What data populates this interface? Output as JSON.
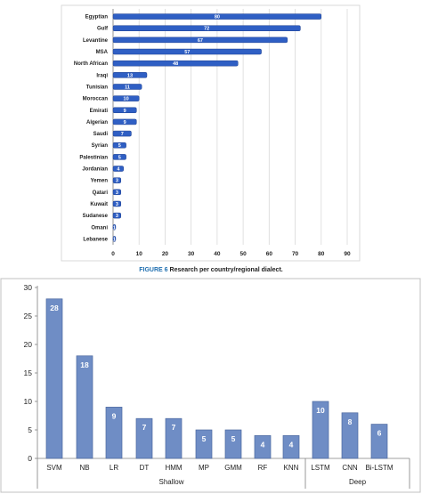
{
  "caption": {
    "figure_label": "FIGURE 6",
    "text": " Research per country/regional dialect."
  },
  "colors": {
    "bar_top": "#2f5fc4",
    "bar_top_edge": "#1d3f8f",
    "bar_bottom": "#6f8dc5",
    "bar_bottom_edge": "#4a679e",
    "grid": "#d9d9d9",
    "axis": "#808080"
  },
  "chart_data": [
    {
      "type": "bar",
      "orientation": "horizontal",
      "title": "",
      "xlabel": "",
      "ylabel": "",
      "xlim": [
        0,
        90
      ],
      "xticks": [
        0,
        10,
        20,
        30,
        40,
        50,
        60,
        70,
        80,
        90
      ],
      "grid": true,
      "categories": [
        "Egyptian",
        "Gulf",
        "Levantine",
        "MSA",
        "North African",
        "Iraqi",
        "Tunisian",
        "Moroccan",
        "Emirati",
        "Algerian",
        "Saudi",
        "Syrian",
        "Palestinian",
        "Jordanian",
        "Yemen",
        "Qatari",
        "Kuwait",
        "Sudanese",
        "Omani",
        "Lebanese"
      ],
      "values": [
        80,
        72,
        67,
        57,
        48,
        13,
        11,
        10,
        9,
        9,
        7,
        5,
        5,
        4,
        3,
        3,
        3,
        3,
        1,
        1
      ],
      "labels": [
        "80",
        "72",
        "67",
        "57",
        "48",
        "13",
        "11",
        "10",
        "9",
        "9",
        "7",
        "5",
        "5",
        "4",
        "3",
        "3",
        "3",
        "3",
        "1",
        "1"
      ]
    },
    {
      "type": "bar",
      "orientation": "vertical",
      "title": "",
      "xlabel": "",
      "ylabel": "",
      "ylim": [
        0,
        30
      ],
      "yticks": [
        0,
        5,
        10,
        15,
        20,
        25,
        30
      ],
      "grid": false,
      "categories": [
        "SVM",
        "NB",
        "LR",
        "DT",
        "HMM",
        "MP",
        "GMM",
        "RF",
        "KNN",
        "LSTM",
        "CNN",
        "Bi-LSTM"
      ],
      "values": [
        28,
        18,
        9,
        7,
        7,
        5,
        5,
        4,
        4,
        10,
        8,
        6
      ],
      "labels": [
        "28",
        "18",
        "9",
        "7",
        "7",
        "5",
        "5",
        "4",
        "4",
        "10",
        "8",
        "6"
      ],
      "groups": [
        {
          "name": "Shallow",
          "count": 9
        },
        {
          "name": "Deep",
          "count": 3
        }
      ]
    }
  ]
}
